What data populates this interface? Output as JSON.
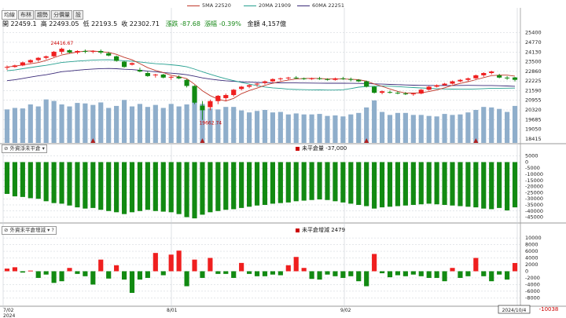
{
  "toolbar": {
    "tabs": [
      "均線",
      "布林",
      "趨勢",
      "分價量",
      "設"
    ]
  },
  "ma_legend": [
    {
      "label": "5MA 22520",
      "color": "#c0392b"
    },
    {
      "label": "20MA 21909",
      "color": "#27a090"
    },
    {
      "label": "60MA 22251",
      "color": "#3a2a78"
    }
  ],
  "info": {
    "open": "開 22459.1",
    "high": "高 22493.05",
    "low": "低 22193.5",
    "close": "收 22302.71",
    "change": "漲跌 -87.68",
    "pct": "漲幅 -0.39%",
    "amount": "金額 4,157億"
  },
  "panels": {
    "oi_title": "外資淨未平倉",
    "oi_label": "未平倉量 -37,000",
    "delta_title": "外資未平倉增減",
    "delta_label": "未平倉增減 2479"
  },
  "colors": {
    "up": "#ef1f1f",
    "down": "#128a12",
    "volume": "#8faecb",
    "grid": "#c9cfd6",
    "ma5": "#c0392b",
    "ma20": "#27a090",
    "ma60": "#3a2a78"
  },
  "chart_data": [
    {
      "type": "candlestick",
      "title": "",
      "x_labels": [
        "7/02",
        "2024",
        "8/01",
        "9/02",
        "2024/10/4"
      ],
      "y_ticks": [
        25400,
        24770,
        24130,
        23500,
        22860,
        22225,
        21590,
        20955,
        20320,
        19685,
        19050,
        18415
      ],
      "ylim": [
        18150,
        25800
      ],
      "annotations": [
        {
          "text": "24416.67"
        },
        {
          "text": "19662.74"
        }
      ],
      "ohlc": [
        [
          23100,
          23250,
          22950,
          23150
        ],
        [
          23150,
          23300,
          23100,
          23250
        ],
        [
          23250,
          23500,
          23200,
          23450
        ],
        [
          23450,
          23650,
          23400,
          23600
        ],
        [
          23600,
          23800,
          23500,
          23750
        ],
        [
          23750,
          23900,
          23650,
          23850
        ],
        [
          23850,
          24200,
          23800,
          24150
        ],
        [
          24150,
          24417,
          24000,
          24350
        ],
        [
          24250,
          24300,
          24050,
          24100
        ],
        [
          24100,
          24250,
          24000,
          24200
        ],
        [
          24200,
          24300,
          24050,
          24150
        ],
        [
          24150,
          24250,
          24050,
          24200
        ],
        [
          24200,
          24300,
          24000,
          24100
        ],
        [
          24050,
          24150,
          23850,
          23900
        ],
        [
          23850,
          23900,
          23500,
          23550
        ],
        [
          23500,
          23550,
          23100,
          23150
        ],
        [
          23300,
          23450,
          23250,
          23400
        ],
        [
          22950,
          23100,
          22800,
          22850
        ],
        [
          22750,
          22850,
          22500,
          22550
        ],
        [
          22600,
          22700,
          22450,
          22650
        ],
        [
          22650,
          22700,
          22400,
          22450
        ],
        [
          22500,
          22550,
          22300,
          22500
        ],
        [
          22500,
          22600,
          22350,
          22400
        ],
        [
          22300,
          22350,
          21800,
          21900
        ],
        [
          21900,
          21950,
          20700,
          20800
        ],
        [
          20600,
          20900,
          19663,
          20300
        ],
        [
          20500,
          21000,
          20300,
          20900
        ],
        [
          20900,
          21300,
          20700,
          21250
        ],
        [
          21100,
          21400,
          20900,
          21300
        ],
        [
          21300,
          21700,
          21200,
          21650
        ],
        [
          21700,
          21900,
          21600,
          21850
        ],
        [
          21850,
          22000,
          21750,
          21950
        ],
        [
          22000,
          22100,
          21850,
          22050
        ],
        [
          22100,
          22250,
          22000,
          22200
        ],
        [
          22200,
          22400,
          22150,
          22350
        ],
        [
          22350,
          22450,
          22250,
          22400
        ],
        [
          22400,
          22500,
          22300,
          22450
        ],
        [
          22450,
          22550,
          22350,
          22400
        ],
        [
          22400,
          22450,
          22300,
          22350
        ],
        [
          22350,
          22450,
          22300,
          22400
        ],
        [
          22400,
          22500,
          22300,
          22350
        ],
        [
          22350,
          22400,
          22250,
          22300
        ],
        [
          22300,
          22450,
          22250,
          22400
        ],
        [
          22400,
          22500,
          22300,
          22350
        ],
        [
          22350,
          22450,
          22200,
          22300
        ],
        [
          22300,
          22350,
          22150,
          22200
        ],
        [
          22200,
          22250,
          21800,
          21850
        ],
        [
          21850,
          21900,
          21400,
          21450
        ],
        [
          21450,
          21600,
          21350,
          21550
        ],
        [
          21500,
          21600,
          21400,
          21450
        ],
        [
          21450,
          21550,
          21350,
          21400
        ],
        [
          21400,
          21500,
          21300,
          21350
        ],
        [
          21350,
          21450,
          21250,
          21400
        ],
        [
          21400,
          21700,
          21350,
          21650
        ],
        [
          21650,
          21900,
          21600,
          21850
        ],
        [
          21850,
          22000,
          21800,
          21950
        ],
        [
          21950,
          22100,
          21900,
          22050
        ],
        [
          22050,
          22250,
          22000,
          22200
        ],
        [
          22200,
          22350,
          22150,
          22300
        ],
        [
          22300,
          22450,
          22200,
          22400
        ],
        [
          22400,
          22650,
          22350,
          22600
        ],
        [
          22600,
          22800,
          22500,
          22750
        ],
        [
          22750,
          22900,
          22650,
          22850
        ],
        [
          22600,
          22700,
          22400,
          22450
        ],
        [
          22450,
          22550,
          22300,
          22400
        ],
        [
          22459,
          22493,
          22194,
          22303
        ]
      ],
      "volume": [
        3350,
        3500,
        3450,
        3850,
        3650,
        4350,
        4200,
        3850,
        3650,
        4000,
        3950,
        3800,
        4050,
        3500,
        3700,
        4300,
        3650,
        3900,
        3600,
        3800,
        3500,
        3900,
        3650,
        3850,
        5150,
        3900,
        3450,
        3350,
        3600,
        3600,
        3250,
        3050,
        3200,
        3300,
        3050,
        3100,
        2850,
        2950,
        2850,
        2850,
        2900,
        2700,
        2750,
        2650,
        2850,
        3000,
        3550,
        4250,
        3100,
        2800,
        3000,
        3000,
        2800,
        2800,
        2700,
        2650,
        2900,
        2800,
        2850,
        3050,
        3300,
        3600,
        3550,
        3400,
        3100,
        3700
      ],
      "vol_max": 5500
    },
    {
      "type": "bar",
      "title": "外資淨未平倉",
      "y_ticks": [
        5000,
        0,
        -5000,
        -10000,
        -15000,
        -20000,
        -25000,
        -30000,
        -35000,
        -40000,
        -45000
      ],
      "ylim": [
        -48500,
        8000
      ],
      "values": [
        -26000,
        -28000,
        -28500,
        -29500,
        -30000,
        -32000,
        -33500,
        -34000,
        -35500,
        -37000,
        -38000,
        -37500,
        -39000,
        -40000,
        -41000,
        -42500,
        -41000,
        -40000,
        -39000,
        -40000,
        -40500,
        -41000,
        -42500,
        -45000,
        -46000,
        -43000,
        -41000,
        -40000,
        -39000,
        -38500,
        -37500,
        -36500,
        -35500,
        -35000,
        -34000,
        -33500,
        -33000,
        -32000,
        -31500,
        -31000,
        -30500,
        -31000,
        -32000,
        -33000,
        -34000,
        -35000,
        -36000,
        -38000,
        -37000,
        -36500,
        -36000,
        -35500,
        -35000,
        -34500,
        -34000,
        -34500,
        -35000,
        -35500,
        -36000,
        -36500,
        -37000,
        -38000,
        -38500,
        -37500,
        -39500,
        -37000
      ]
    },
    {
      "type": "bar",
      "title": "外資未平倉增減",
      "y_ticks": [
        10000,
        8000,
        6000,
        4000,
        2000,
        0,
        -2000,
        -4000,
        -6000,
        -8000
      ],
      "ylim": [
        -10038,
        11200
      ],
      "annotations": [
        {
          "text": "-10038"
        }
      ],
      "values": [
        800,
        1200,
        -400,
        200,
        -2000,
        -1000,
        -3500,
        -3000,
        1000,
        -800,
        -1500,
        -4000,
        3500,
        -2200,
        1800,
        -2500,
        -6500,
        -2500,
        -2000,
        5500,
        -1200,
        5000,
        6200,
        -4500,
        3500,
        -2000,
        4000,
        -800,
        -800,
        -2000,
        2500,
        -800,
        -1500,
        -1500,
        -1000,
        -1200,
        1800,
        4300,
        1000,
        -2300,
        -2500,
        -1000,
        -1500,
        -2000,
        -1500,
        -3000,
        -4500,
        5200,
        -600,
        -1800,
        -1200,
        -1500,
        -1000,
        -1500,
        -2000,
        -2000,
        -3000,
        1000,
        -2000,
        -1500,
        4000,
        -1500,
        -3000,
        -1000,
        -2500,
        2479
      ]
    }
  ]
}
